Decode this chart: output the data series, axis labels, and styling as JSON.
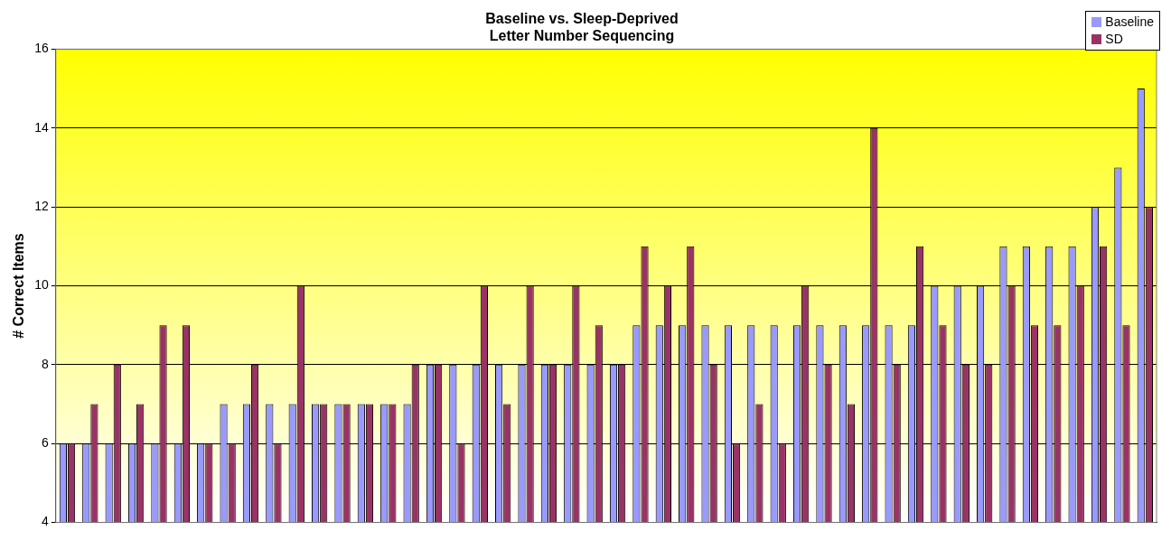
{
  "chart_data": {
    "type": "bar",
    "title": "Baseline vs. Sleep-Deprived",
    "subtitle": "Letter Number Sequencing",
    "ylabel": "# Correct Items",
    "categories": [
      null,
      null,
      null,
      null,
      null,
      null,
      null,
      null,
      null,
      null,
      null,
      null,
      null,
      null,
      null,
      null,
      null,
      null,
      null,
      null,
      null,
      null,
      null,
      null,
      null,
      null,
      null,
      null,
      null,
      null,
      null,
      null,
      null,
      null,
      null,
      null,
      null,
      null,
      null,
      null,
      null,
      null,
      null,
      null,
      null,
      null,
      null,
      null
    ],
    "series": [
      {
        "name": "Baseline",
        "color": "#9999ff",
        "values": [
          6,
          6,
          6,
          6,
          6,
          6,
          6,
          7,
          7,
          7,
          7,
          7,
          7,
          7,
          7,
          7,
          8,
          8,
          8,
          8,
          8,
          8,
          8,
          8,
          8,
          9,
          9,
          9,
          9,
          9,
          9,
          9,
          9,
          9,
          9,
          9,
          9,
          9,
          10,
          10,
          10,
          11,
          11,
          11,
          11,
          12,
          13,
          15
        ]
      },
      {
        "name": "SD",
        "color": "#993366",
        "values": [
          6,
          7,
          8,
          7,
          9,
          9,
          6,
          6,
          8,
          6,
          10,
          7,
          7,
          7,
          7,
          8,
          8,
          6,
          10,
          7,
          10,
          8,
          10,
          9,
          8,
          11,
          10,
          11,
          8,
          6,
          7,
          6,
          10,
          8,
          7,
          14,
          8,
          11,
          9,
          8,
          8,
          10,
          9,
          9,
          10,
          11,
          9,
          12
        ]
      }
    ],
    "ylim": [
      4,
      16
    ],
    "yticks": [
      4,
      6,
      8,
      10,
      12,
      14,
      16
    ],
    "grid": "y",
    "legend": "top right"
  }
}
